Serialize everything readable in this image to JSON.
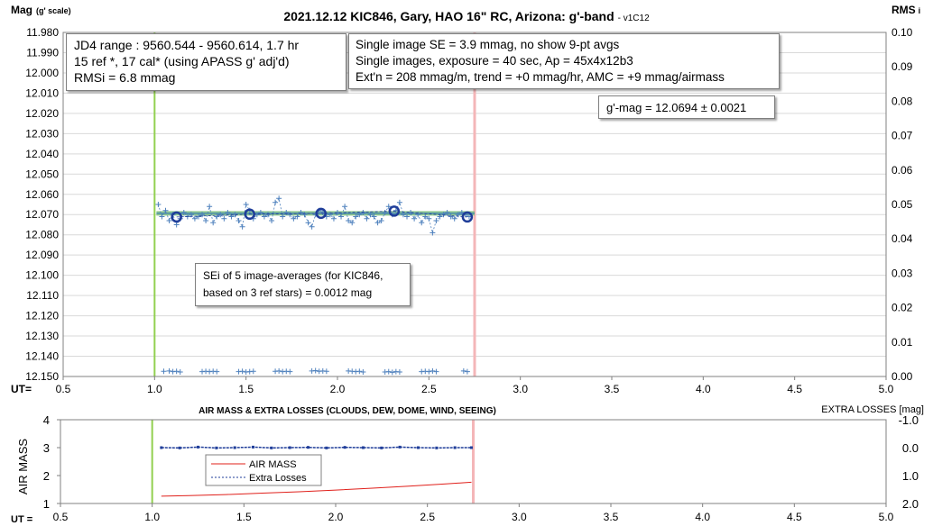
{
  "chart_data": [
    {
      "type": "scatter",
      "title": "2021.12.12 KIC846, Gary, HAO 16\" RC, Arizona: g'-band",
      "version_tag": "- v1C12",
      "ylabel_main": "Mag",
      "ylabel_suffix": "(g' scale)",
      "y2label": "RMS",
      "y2label_suffix": "i",
      "xlabel": "UT=",
      "xlim": [
        0.5,
        5.0
      ],
      "ylim": [
        11.98,
        12.15
      ],
      "y_inverted": true,
      "y2lim": [
        0.0,
        0.1
      ],
      "xticks": [
        "0.5",
        "1.0",
        "1.5",
        "2.0",
        "2.5",
        "3.0",
        "3.5",
        "4.0",
        "4.5",
        "5.0"
      ],
      "yticks": [
        "11.980",
        "11.990",
        "12.000",
        "12.010",
        "12.020",
        "12.030",
        "12.040",
        "12.050",
        "12.060",
        "12.070",
        "12.080",
        "12.090",
        "12.100",
        "12.110",
        "12.120",
        "12.130",
        "12.140",
        "12.150"
      ],
      "y2ticks": [
        "0.00",
        "0.01",
        "0.02",
        "0.03",
        "0.04",
        "0.05",
        "0.06",
        "0.07",
        "0.08",
        "0.09",
        "0.10"
      ],
      "gridlines": true,
      "window_start_ut": 1.0,
      "window_end_ut": 2.75,
      "mean_mag": 12.0694,
      "single_images": {
        "x": [
          1.02,
          1.04,
          1.06,
          1.08,
          1.1,
          1.12,
          1.14,
          1.16,
          1.18,
          1.2,
          1.22,
          1.24,
          1.26,
          1.28,
          1.3,
          1.32,
          1.34,
          1.36,
          1.38,
          1.4,
          1.42,
          1.44,
          1.46,
          1.48,
          1.5,
          1.52,
          1.54,
          1.56,
          1.58,
          1.6,
          1.62,
          1.64,
          1.66,
          1.68,
          1.7,
          1.72,
          1.74,
          1.76,
          1.78,
          1.8,
          1.82,
          1.84,
          1.86,
          1.88,
          1.9,
          1.92,
          1.94,
          1.96,
          1.98,
          2.0,
          2.02,
          2.04,
          2.06,
          2.08,
          2.1,
          2.12,
          2.14,
          2.16,
          2.18,
          2.2,
          2.22,
          2.24,
          2.26,
          2.28,
          2.3,
          2.32,
          2.34,
          2.36,
          2.38,
          2.4,
          2.42,
          2.44,
          2.46,
          2.48,
          2.5,
          2.52,
          2.54,
          2.56,
          2.58,
          2.6,
          2.62,
          2.64,
          2.66,
          2.68,
          2.7,
          2.72
        ],
        "y": [
          12.065,
          12.071,
          12.068,
          12.073,
          12.07,
          12.075,
          12.072,
          12.069,
          12.071,
          12.07,
          12.072,
          12.071,
          12.07,
          12.073,
          12.066,
          12.074,
          12.071,
          12.07,
          12.072,
          12.069,
          12.071,
          12.07,
          12.073,
          12.076,
          12.065,
          12.068,
          12.072,
          12.07,
          12.069,
          12.071,
          12.07,
          12.073,
          12.064,
          12.062,
          12.071,
          12.069,
          12.07,
          12.072,
          12.071,
          12.069,
          12.07,
          12.074,
          12.076,
          12.07,
          12.068,
          12.069,
          12.071,
          12.07,
          12.072,
          12.069,
          12.071,
          12.066,
          12.073,
          12.074,
          12.071,
          12.07,
          12.069,
          12.072,
          12.07,
          12.071,
          12.074,
          12.073,
          12.069,
          12.066,
          12.07,
          12.068,
          12.064,
          12.07,
          12.071,
          12.069,
          12.072,
          12.07,
          12.074,
          12.071,
          12.072,
          12.079,
          12.073,
          12.071,
          12.07,
          12.069,
          12.071,
          12.072,
          12.07,
          12.069,
          12.07,
          12.071
        ]
      },
      "image_averages": {
        "x": [
          1.12,
          1.52,
          1.91,
          2.31,
          2.71
        ],
        "y": [
          12.0712,
          12.0698,
          12.0694,
          12.0683,
          12.0712
        ]
      },
      "rms_points": {
        "x": [
          1.05,
          1.08,
          1.1,
          1.12,
          1.14,
          1.26,
          1.28,
          1.3,
          1.32,
          1.34,
          1.46,
          1.48,
          1.5,
          1.52,
          1.54,
          1.66,
          1.68,
          1.7,
          1.72,
          1.74,
          1.86,
          1.88,
          1.9,
          1.92,
          1.94,
          2.06,
          2.08,
          2.1,
          2.12,
          2.14,
          2.26,
          2.28,
          2.3,
          2.32,
          2.34,
          2.46,
          2.48,
          2.5,
          2.52,
          2.54,
          2.69,
          2.71
        ],
        "y": [
          0.0015,
          0.0016,
          0.0014,
          0.0015,
          0.0013,
          0.0014,
          0.0015,
          0.0014,
          0.0015,
          0.0014,
          0.0014,
          0.0015,
          0.0013,
          0.0014,
          0.0015,
          0.0015,
          0.0016,
          0.0014,
          0.0015,
          0.0014,
          0.0016,
          0.0017,
          0.0015,
          0.0016,
          0.0015,
          0.0016,
          0.0015,
          0.0014,
          0.0015,
          0.0013,
          0.0013,
          0.0014,
          0.0012,
          0.0014,
          0.0013,
          0.0014,
          0.0015,
          0.0014,
          0.0016,
          0.0014,
          0.0016,
          0.0014
        ]
      }
    },
    {
      "type": "line",
      "title": "AIR MASS & EXTRA LOSSES (CLOUDS, DEW, DOME, WIND, SEEING)",
      "ylabel": "AIR MASS",
      "y2label": "EXTRA LOSSES [mag]",
      "xlabel": "UT =",
      "xlim": [
        0.5,
        5.0
      ],
      "ylim": [
        1,
        4
      ],
      "y2lim": [
        2.0,
        -1.0
      ],
      "xticks": [
        "0.5",
        "1.0",
        "1.5",
        "2.0",
        "2.5",
        "3.0",
        "3.5",
        "4.0",
        "4.5",
        "5.0"
      ],
      "yticks": [
        "1",
        "2",
        "3",
        "4"
      ],
      "y2ticks": [
        "2.0",
        "1.0",
        "0.0",
        "-1.0"
      ],
      "window_start_ut": 1.0,
      "window_end_ut": 2.75,
      "series": [
        {
          "name": "AIR MASS",
          "color": "#e0201b",
          "x": [
            1.05,
            1.2,
            1.4,
            1.6,
            1.8,
            2.0,
            2.2,
            2.4,
            2.6,
            2.74
          ],
          "values": [
            1.26,
            1.28,
            1.32,
            1.37,
            1.42,
            1.48,
            1.55,
            1.62,
            1.7,
            1.76
          ]
        },
        {
          "name": "Extra Losses",
          "color": "#1f3d99",
          "x": [
            1.05,
            1.15,
            1.25,
            1.35,
            1.45,
            1.55,
            1.65,
            1.75,
            1.85,
            1.95,
            2.05,
            2.15,
            2.25,
            2.35,
            2.45,
            2.55,
            2.65,
            2.74
          ],
          "values": [
            0.0,
            0.01,
            -0.02,
            0.01,
            0.0,
            -0.02,
            0.01,
            0.0,
            -0.01,
            0.01,
            -0.01,
            0.0,
            0.01,
            -0.02,
            0.0,
            0.01,
            0.0,
            0.0
          ]
        }
      ]
    }
  ],
  "annotations": {
    "info_box": {
      "line1": "JD4 range : 9560.544 - 9560.614,  1.7  hr",
      "line2": "15 ref *, 17 cal* (using APASS g' adj'd)",
      "line3": "RMSi = 6.8 mmag"
    },
    "obs_box": {
      "line1": "Single image SE = 3.9 mmag, no show  9-pt avgs",
      "line2": "Single images, exposure = 40 sec, Ap = 45x4x12b3",
      "line3": "Ext'n = 208 mmag/m, trend = +0 mmag/hr, AMC = +9 mmag/airmass"
    },
    "gmag_box": "g'-mag = 12.0694 ± 0.0021",
    "sei_box": {
      "line1": "SEi of 5 image-averages (for KIC846,",
      "line2": "based on 3 ref stars) = 0.0012 mag"
    }
  },
  "colors": {
    "window_start": "#92d050",
    "window_end": "#f4b6b8",
    "mean_band": "#7fbf7f",
    "mean_line": "#2e75b6",
    "points": "#4f81bd",
    "averages": "#1f3d99"
  }
}
